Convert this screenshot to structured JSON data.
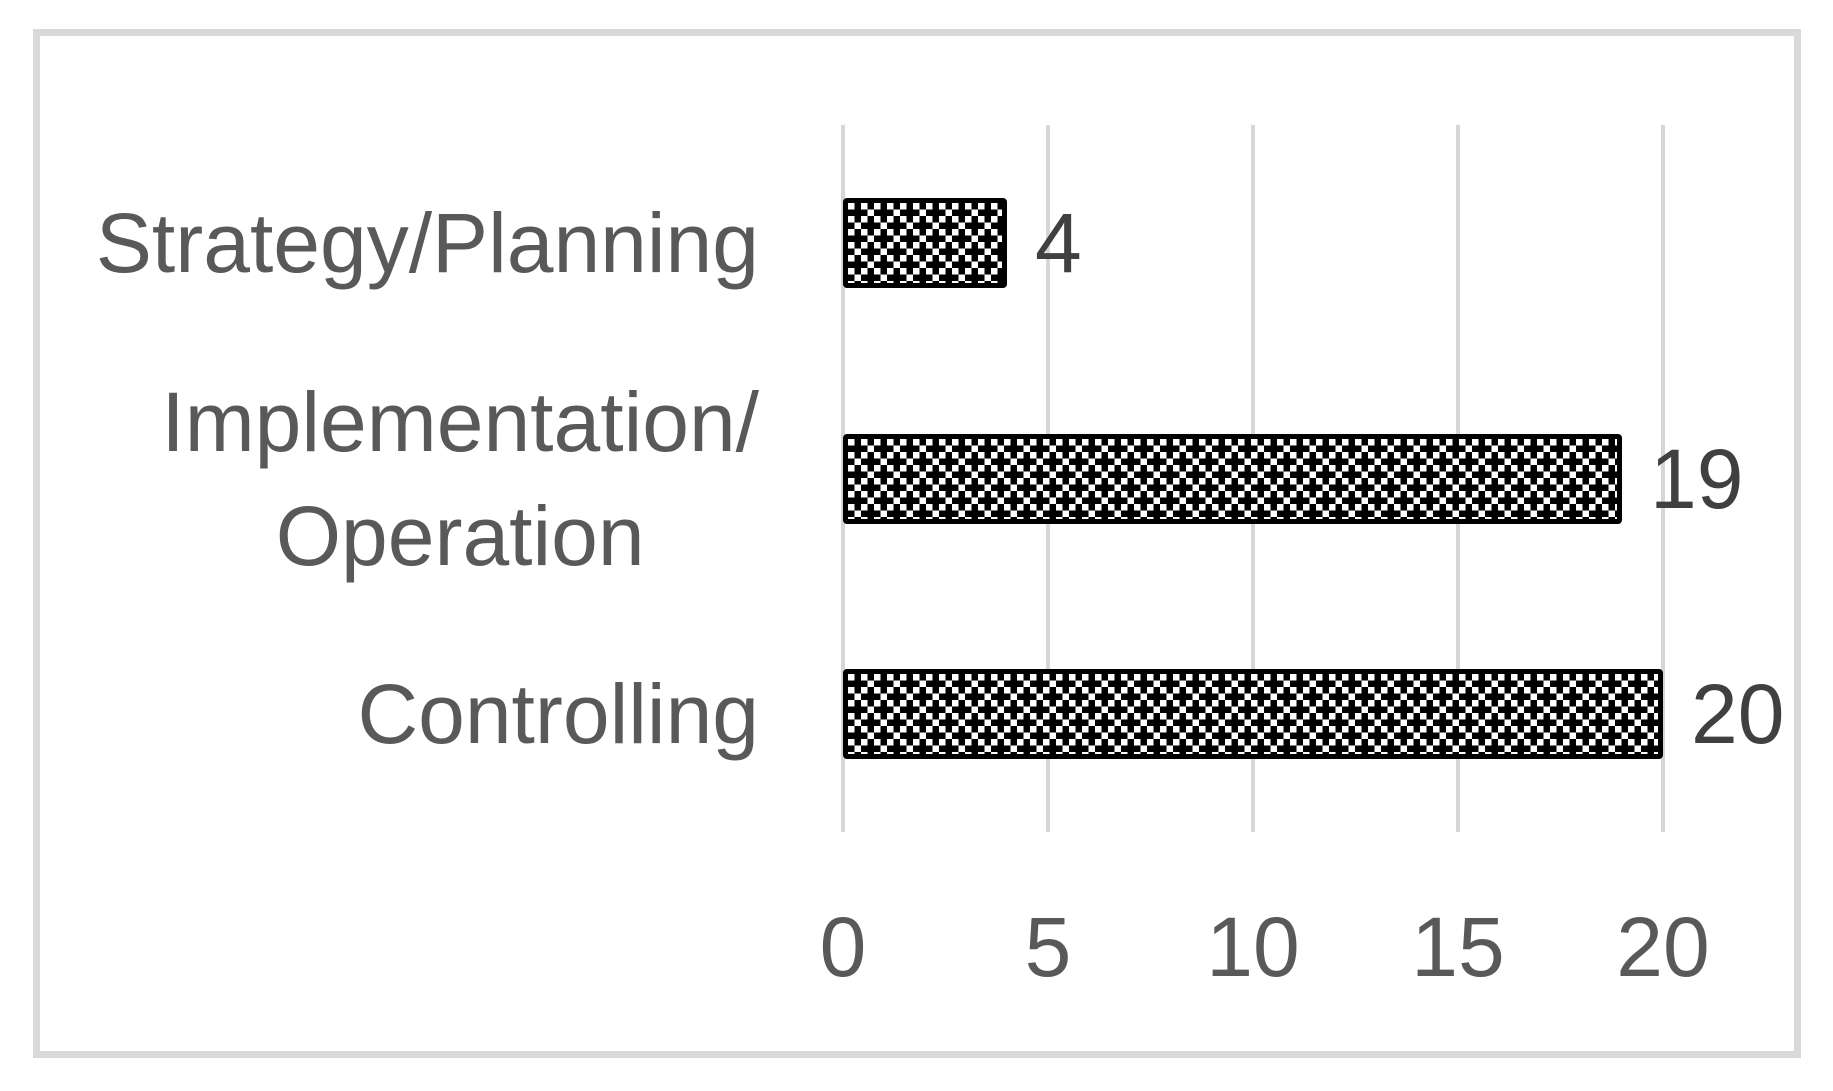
{
  "chart_data": {
    "type": "bar",
    "orientation": "horizontal",
    "title": "",
    "xlabel": "",
    "ylabel": "",
    "categories": [
      "Strategy/Planning",
      "Implementation/\nOperation",
      "Controlling"
    ],
    "values": [
      4,
      19,
      20
    ],
    "data_labels": [
      "4",
      "19",
      "20"
    ],
    "x_ticks": [
      0,
      5,
      10,
      15,
      20
    ],
    "x_tick_labels": [
      "0",
      "5",
      "10",
      "15",
      "20"
    ],
    "xlim": [
      0,
      20
    ],
    "grid": "vertical-gridlines-on",
    "legend": "none",
    "bar_style": "black-white-checker-pattern-fill-with-black-outline",
    "colors": {
      "bar_pattern_fg": "#000000",
      "bar_pattern_bg": "#ffffff",
      "bar_border": "#000000",
      "gridline": "#d6d6d6",
      "frame_border": "#d9d9d9",
      "axis_text": "#595959",
      "data_label_text": "#404040",
      "background": "#ffffff"
    }
  }
}
